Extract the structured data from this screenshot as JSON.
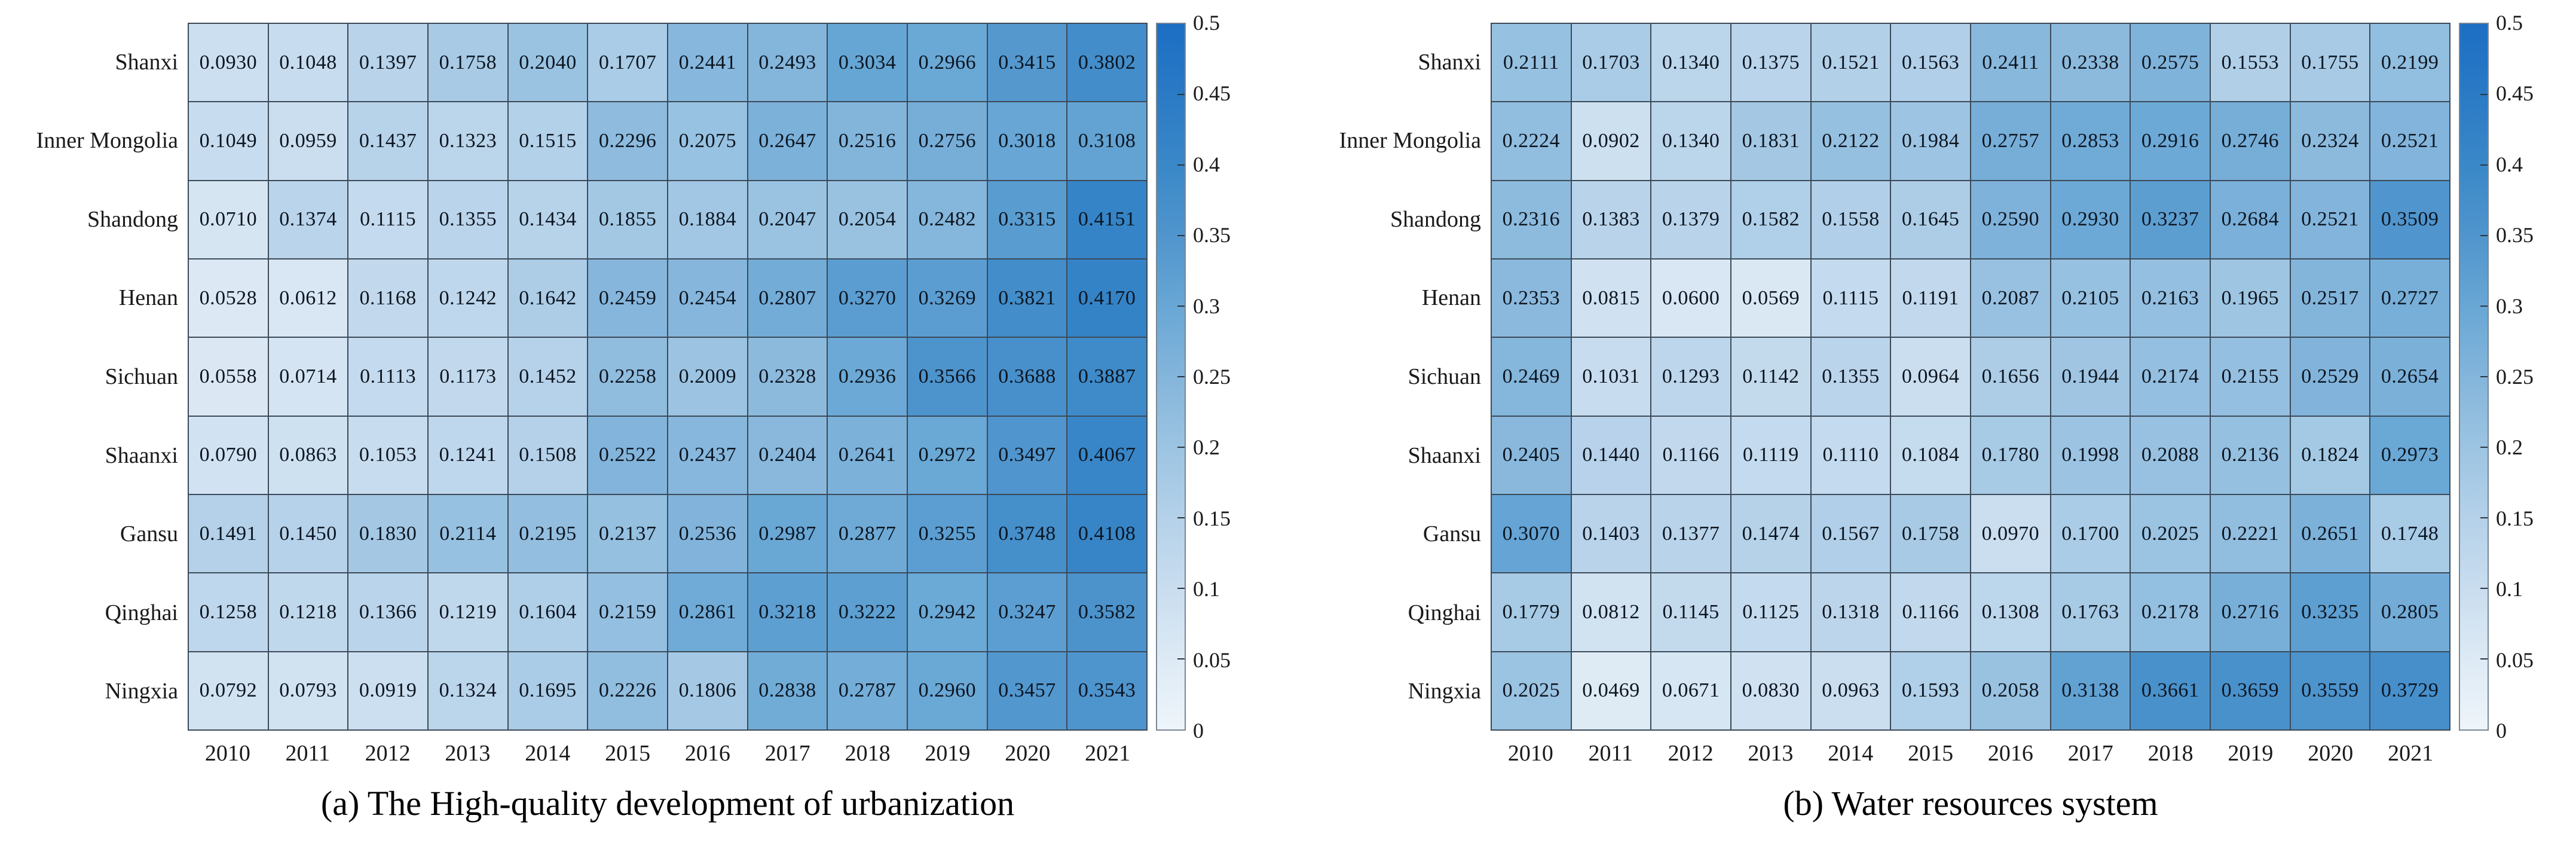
{
  "chart_data": [
    {
      "type": "heatmap",
      "title": "(a) The High-quality development of urbanization",
      "x": [
        "2010",
        "2011",
        "2012",
        "2013",
        "2014",
        "2015",
        "2016",
        "2017",
        "2018",
        "2019",
        "2020",
        "2021"
      ],
      "y": [
        "Shanxi",
        "Inner Mongolia",
        "Shandong",
        "Henan",
        "Sichuan",
        "Shaanxi",
        "Gansu",
        "Qinghai",
        "Ningxia"
      ],
      "values": [
        [
          "0.0930",
          "0.1048",
          "0.1397",
          "0.1758",
          "0.2040",
          "0.1707",
          "0.2441",
          "0.2493",
          "0.3034",
          "0.2966",
          "0.3415",
          "0.3802"
        ],
        [
          "0.1049",
          "0.0959",
          "0.1437",
          "0.1323",
          "0.1515",
          "0.2296",
          "0.2075",
          "0.2647",
          "0.2516",
          "0.2756",
          "0.3018",
          "0.3108"
        ],
        [
          "0.0710",
          "0.1374",
          "0.1115",
          "0.1355",
          "0.1434",
          "0.1855",
          "0.1884",
          "0.2047",
          "0.2054",
          "0.2482",
          "0.3315",
          "0.4151"
        ],
        [
          "0.0528",
          "0.0612",
          "0.1168",
          "0.1242",
          "0.1642",
          "0.2459",
          "0.2454",
          "0.2807",
          "0.3270",
          "0.3269",
          "0.3821",
          "0.4170"
        ],
        [
          "0.0558",
          "0.0714",
          "0.1113",
          "0.1173",
          "0.1452",
          "0.2258",
          "0.2009",
          "0.2328",
          "0.2936",
          "0.3566",
          "0.3688",
          "0.3887"
        ],
        [
          "0.0790",
          "0.0863",
          "0.1053",
          "0.1241",
          "0.1508",
          "0.2522",
          "0.2437",
          "0.2404",
          "0.2641",
          "0.2972",
          "0.3497",
          "0.4067"
        ],
        [
          "0.1491",
          "0.1450",
          "0.1830",
          "0.2114",
          "0.2195",
          "0.2137",
          "0.2536",
          "0.2987",
          "0.2877",
          "0.3255",
          "0.3748",
          "0.4108"
        ],
        [
          "0.1258",
          "0.1218",
          "0.1366",
          "0.1219",
          "0.1604",
          "0.2159",
          "0.2861",
          "0.3218",
          "0.3222",
          "0.2942",
          "0.3247",
          "0.3582"
        ],
        [
          "0.0792",
          "0.0793",
          "0.0919",
          "0.1324",
          "0.1695",
          "0.2226",
          "0.1806",
          "0.2838",
          "0.2787",
          "0.2960",
          "0.3457",
          "0.3543"
        ]
      ],
      "colorbar": {
        "min": 0,
        "max": 0.5,
        "tick_labels": [
          "0.5",
          "0.45",
          "0.4",
          "0.35",
          "0.3",
          "0.25",
          "0.2",
          "0.15",
          "0.1",
          "0.05",
          "0"
        ]
      }
    },
    {
      "type": "heatmap",
      "title": "(b) Water resources system",
      "x": [
        "2010",
        "2011",
        "2012",
        "2013",
        "2014",
        "2015",
        "2016",
        "2017",
        "2018",
        "2019",
        "2020",
        "2021"
      ],
      "y": [
        "Shanxi",
        "Inner Mongolia",
        "Shandong",
        "Henan",
        "Sichuan",
        "Shaanxi",
        "Gansu",
        "Qinghai",
        "Ningxia"
      ],
      "values": [
        [
          "0.2111",
          "0.1703",
          "0.1340",
          "0.1375",
          "0.1521",
          "0.1563",
          "0.2411",
          "0.2338",
          "0.2575",
          "0.1553",
          "0.1755",
          "0.2199"
        ],
        [
          "0.2224",
          "0.0902",
          "0.1340",
          "0.1831",
          "0.2122",
          "0.1984",
          "0.2757",
          "0.2853",
          "0.2916",
          "0.2746",
          "0.2324",
          "0.2521"
        ],
        [
          "0.2316",
          "0.1383",
          "0.1379",
          "0.1582",
          "0.1558",
          "0.1645",
          "0.2590",
          "0.2930",
          "0.3237",
          "0.2684",
          "0.2521",
          "0.3509"
        ],
        [
          "0.2353",
          "0.0815",
          "0.0600",
          "0.0569",
          "0.1115",
          "0.1191",
          "0.2087",
          "0.2105",
          "0.2163",
          "0.1965",
          "0.2517",
          "0.2727"
        ],
        [
          "0.2469",
          "0.1031",
          "0.1293",
          "0.1142",
          "0.1355",
          "0.0964",
          "0.1656",
          "0.1944",
          "0.2174",
          "0.2155",
          "0.2529",
          "0.2654"
        ],
        [
          "0.2405",
          "0.1440",
          "0.1166",
          "0.1119",
          "0.1110",
          "0.1084",
          "0.1780",
          "0.1998",
          "0.2088",
          "0.2136",
          "0.1824",
          "0.2973"
        ],
        [
          "0.3070",
          "0.1403",
          "0.1377",
          "0.1474",
          "0.1567",
          "0.1758",
          "0.0970",
          "0.1700",
          "0.2025",
          "0.2221",
          "0.2651",
          "0.1748"
        ],
        [
          "0.1779",
          "0.0812",
          "0.1145",
          "0.1125",
          "0.1318",
          "0.1166",
          "0.1308",
          "0.1763",
          "0.2178",
          "0.2716",
          "0.3235",
          "0.2805"
        ],
        [
          "0.2025",
          "0.0469",
          "0.0671",
          "0.0830",
          "0.0963",
          "0.1593",
          "0.2058",
          "0.3138",
          "0.3661",
          "0.3659",
          "0.3559",
          "0.3729"
        ]
      ],
      "colorbar": {
        "min": 0,
        "max": 0.5,
        "tick_labels": [
          "0.5",
          "0.45",
          "0.4",
          "0.35",
          "0.3",
          "0.25",
          "0.2",
          "0.15",
          "0.1",
          "0.05",
          "0"
        ]
      }
    }
  ],
  "colors": {
    "grid_line": "#3c4a58",
    "cell_text": "#0c1520",
    "colormap_stops": [
      {
        "at": 0.0,
        "color": "#eef5fa"
      },
      {
        "at": 0.05,
        "color": "#ddeaf5"
      },
      {
        "at": 0.1,
        "color": "#c9ddef"
      },
      {
        "at": 0.15,
        "color": "#b4d1e9"
      },
      {
        "at": 0.2,
        "color": "#9cc4e2"
      },
      {
        "at": 0.25,
        "color": "#84b5db"
      },
      {
        "at": 0.3,
        "color": "#68a7d5"
      },
      {
        "at": 0.35,
        "color": "#5095cd"
      },
      {
        "at": 0.4,
        "color": "#3a88c8"
      },
      {
        "at": 0.45,
        "color": "#2a7ac5"
      },
      {
        "at": 0.5,
        "color": "#1c6ec4"
      }
    ]
  }
}
